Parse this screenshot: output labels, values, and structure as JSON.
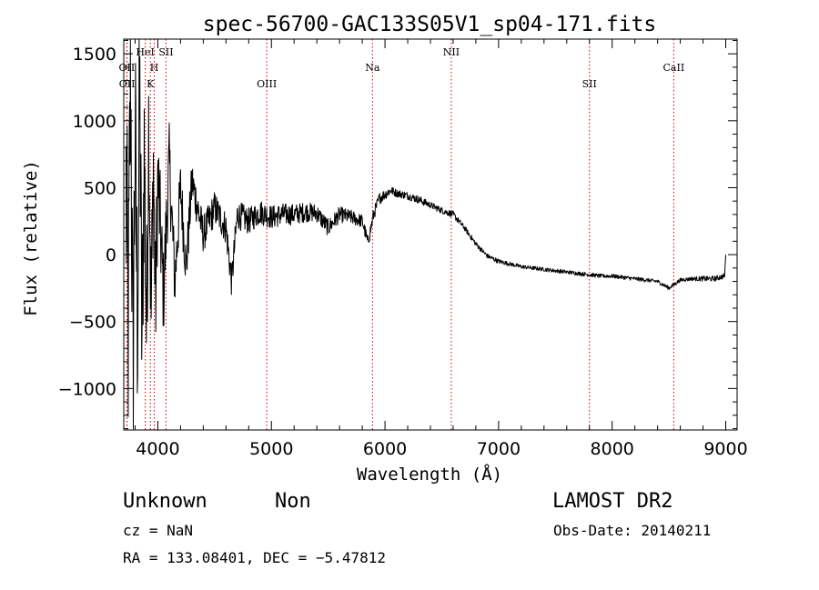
{
  "chart_data": {
    "type": "line",
    "title": "spec-56700-GAC133S05V1_sp04-171.fits",
    "xlabel": "Wavelength (Å)",
    "ylabel": "Flux (relative)",
    "xlim": [
      3700,
      9100
    ],
    "ylim": [
      -1310,
      1610
    ],
    "xticks": [
      4000,
      5000,
      6000,
      7000,
      8000,
      9000
    ],
    "yticks": [
      -1000,
      -500,
      0,
      500,
      1000,
      1500
    ],
    "ytick_labels": [
      "−1000",
      "−500",
      "0",
      "500",
      "1000",
      "1500"
    ],
    "grid": false,
    "line_color": "#000000",
    "marker_color": "#cc0000",
    "lines": [
      {
        "label": "OII",
        "x": 3727,
        "row": "top"
      },
      {
        "label": "OII",
        "x": 3729,
        "row": "mid"
      },
      {
        "label": "HeI",
        "x": 3889,
        "row": "upper"
      },
      {
        "label": "H",
        "x": 3969,
        "row": "top"
      },
      {
        "label": "K",
        "x": 3934,
        "row": "mid"
      },
      {
        "label": "SII",
        "x": 4072,
        "row": "upper"
      },
      {
        "label": "OIII",
        "x": 4959,
        "row": "mid"
      },
      {
        "label": "Na",
        "x": 5890,
        "row": "top"
      },
      {
        "label": "NII",
        "x": 6584,
        "row": "upper"
      },
      {
        "label": "SII",
        "x": 7800,
        "row": "mid"
      },
      {
        "label": "CaII",
        "x": 8542,
        "row": "top"
      }
    ],
    "series": [
      {
        "x": [
          3720,
          3740,
          3760,
          3780,
          3800,
          3820,
          3840,
          3860,
          3880,
          3900,
          3920,
          3940,
          3960,
          3980,
          4000,
          4050,
          4100,
          4150,
          4200,
          4250,
          4300,
          4400,
          4500,
          4600,
          4650,
          4700,
          4800,
          4900,
          5000,
          5100,
          5200,
          5300,
          5400,
          5500,
          5600,
          5700,
          5800,
          5850,
          5900,
          5950,
          6000,
          6050,
          6100,
          6200,
          6300,
          6400,
          6500,
          6600,
          6700,
          6800,
          6900,
          7000,
          7100,
          7200,
          7300,
          7400,
          7500,
          7600,
          7700,
          7800,
          7900,
          8000,
          8100,
          8200,
          8300,
          8400,
          8500,
          8600,
          8700,
          8800,
          8900,
          8990,
          9000
        ],
        "y": [
          500,
          -600,
          1500,
          -900,
          900,
          -500,
          1200,
          -700,
          800,
          -600,
          1100,
          -500,
          700,
          -400,
          600,
          -300,
          700,
          -200,
          500,
          -100,
          550,
          150,
          350,
          200,
          -200,
          300,
          250,
          320,
          280,
          300,
          300,
          320,
          310,
          200,
          300,
          280,
          250,
          90,
          300,
          420,
          450,
          480,
          460,
          440,
          410,
          370,
          330,
          300,
          200,
          80,
          -10,
          -50,
          -70,
          -90,
          -100,
          -110,
          -120,
          -130,
          -140,
          -150,
          -160,
          -160,
          -170,
          -180,
          -190,
          -200,
          -250,
          -190,
          -180,
          -180,
          -180,
          -160,
          0
        ],
        "noise_amplitude": [
          2000,
          2000,
          2000,
          2000,
          1800,
          1800,
          1700,
          1600,
          1500,
          1400,
          1300,
          1200,
          1100,
          1000,
          900,
          700,
          600,
          500,
          450,
          400,
          350,
          280,
          260,
          250,
          250,
          220,
          200,
          190,
          180,
          170,
          160,
          150,
          140,
          130,
          120,
          110,
          100,
          100,
          100,
          90,
          80,
          70,
          60,
          60,
          60,
          50,
          50,
          50,
          40,
          40,
          35,
          35,
          30,
          30,
          30,
          30,
          30,
          30,
          30,
          30,
          30,
          30,
          30,
          30,
          30,
          30,
          30,
          30,
          30,
          40,
          40,
          40,
          40
        ]
      }
    ]
  },
  "info": {
    "object_class": "Unknown",
    "subclass": "Non",
    "survey": "LAMOST DR2",
    "cz": "cz = NaN",
    "obs_date": "Obs-Date: 20140211",
    "coords": "RA = 133.08401, DEC =  −5.47812"
  }
}
